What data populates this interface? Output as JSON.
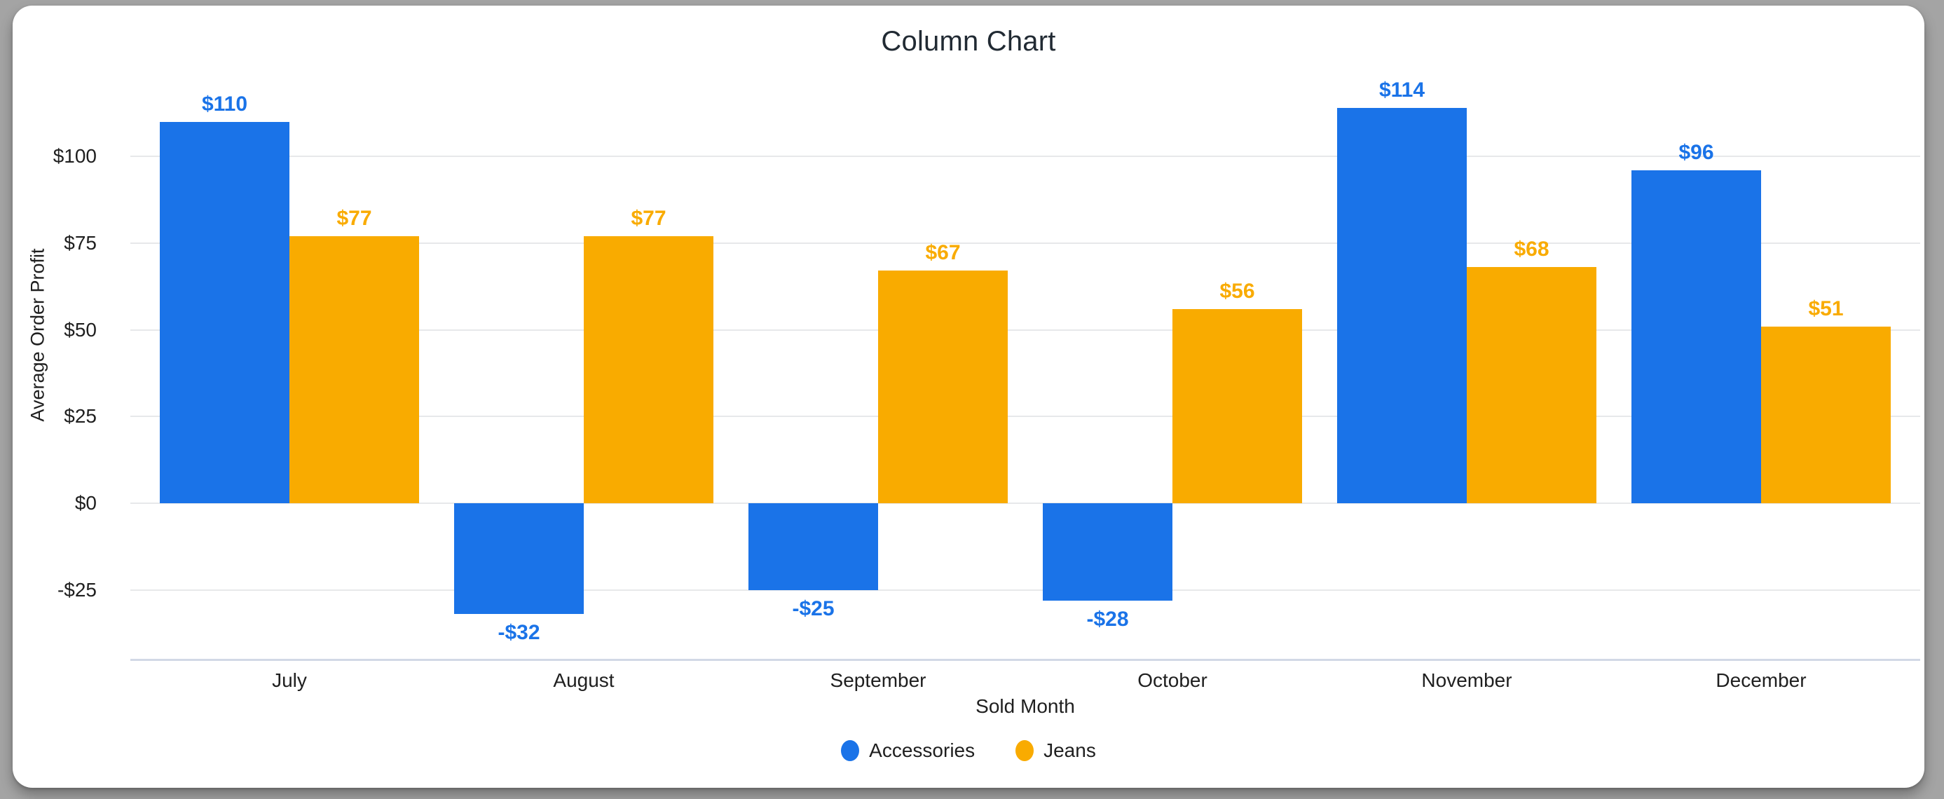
{
  "window": {
    "background_color": "#a4a4a4",
    "card_background_color": "#ffffff"
  },
  "chart_data": {
    "type": "bar",
    "title": "Column Chart",
    "xlabel": "Sold Month",
    "ylabel": "Average Order Profit",
    "categories": [
      "July",
      "August",
      "September",
      "October",
      "November",
      "December"
    ],
    "series": [
      {
        "name": "Accessories",
        "color": "#1a73e8",
        "values": [
          110,
          -32,
          -25,
          -28,
          114,
          96
        ],
        "labels": [
          "$110",
          "-$32",
          "-$25",
          "-$28",
          "$114",
          "$96"
        ]
      },
      {
        "name": "Jeans",
        "color": "#f9ab00",
        "values": [
          77,
          77,
          67,
          56,
          68,
          51
        ],
        "labels": [
          "$77",
          "$77",
          "$67",
          "$56",
          "$68",
          "$51"
        ]
      }
    ],
    "y_ticks": [
      {
        "label": "$100",
        "value": 100
      },
      {
        "label": "$75",
        "value": 75
      },
      {
        "label": "$50",
        "value": 50
      },
      {
        "label": "$25",
        "value": 25
      },
      {
        "label": "$0",
        "value": 0
      },
      {
        "label": "-$25",
        "value": -25
      }
    ],
    "ylim": [
      -45,
      145
    ],
    "grid": true,
    "legend_position": "bottom",
    "gridline_color": "#e7e8ea",
    "axis_line_color": "#d2d9e6",
    "text_color": "#1f1f1f",
    "title_color": "#212a33"
  }
}
